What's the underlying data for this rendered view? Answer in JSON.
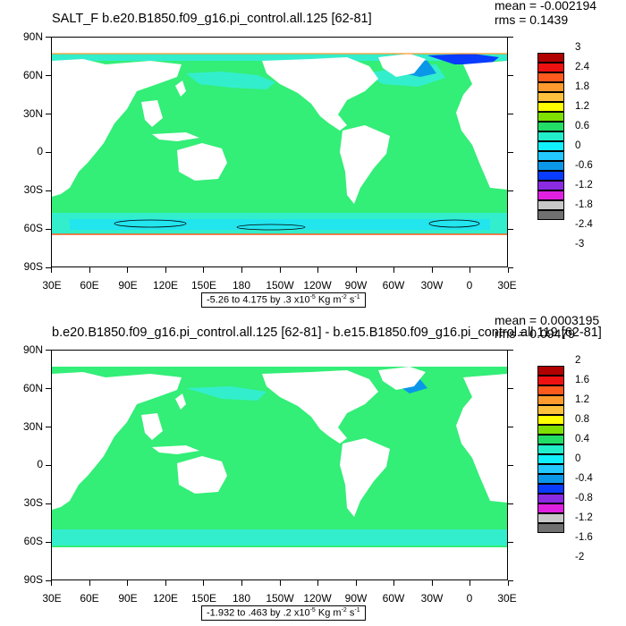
{
  "panels": [
    {
      "title": "SALT_F b.e20.B1850.f09_g16.pi_control.all.125 [62-81]",
      "mean": "mean = -0.002194",
      "rms": "rms = 0.1439",
      "range_text": "-5.26 to 4.175 by .3 x10",
      "range_exp": "-5",
      "range_units": " Kg m",
      "range_units_exp": "-2",
      "range_units_tail": " s",
      "range_s_exp": "-1",
      "colorbar_labels": [
        "3",
        "2.4",
        "1.8",
        "1.2",
        "0.6",
        "0",
        "-0.6",
        "-1.2",
        "-1.8",
        "-2.4",
        "-3"
      ]
    },
    {
      "title": "b.e20.B1850.f09_g16.pi_control.all.125 [62-81] - b.e15.B1850.f09_g16.pi_control.all.119 [62-81]",
      "mean": "mean = 0.0003195",
      "rms": "rms = 0.09479",
      "range_text": "-1.932 to .463 by .2 x10",
      "range_exp": "-5",
      "range_units": " Kg m",
      "range_units_exp": "-2",
      "range_units_tail": " s",
      "range_s_exp": "-1",
      "colorbar_labels": [
        "2",
        "1.6",
        "1.2",
        "0.8",
        "0.4",
        "0",
        "-0.4",
        "-0.8",
        "-1.2",
        "-1.6",
        "-2"
      ]
    }
  ],
  "lat_labels": [
    "90N",
    "60N",
    "30N",
    "0",
    "30S",
    "60S",
    "90S"
  ],
  "lon_labels": [
    "30E",
    "60E",
    "90E",
    "120E",
    "150E",
    "180",
    "150W",
    "120W",
    "90W",
    "60W",
    "30W",
    "0",
    "30E"
  ],
  "colorbar_colors": [
    "#b00000",
    "#ee1111",
    "#ff5a1e",
    "#ff9a2e",
    "#ffc03e",
    "#ffff00",
    "#7fe000",
    "#22dd66",
    "#22eecc",
    "#10f0ff",
    "#22c8ff",
    "#0b97e8",
    "#0a3cff",
    "#8a2be2",
    "#e020e0",
    "#c8c8c8",
    "#707070"
  ],
  "map_colors": {
    "ocean": "#33ee77",
    "ocean_light": "#33eecc",
    "cyan_band": "#22e5ee",
    "land": "#ffffff",
    "deep_blue": "#0b97e8"
  }
}
